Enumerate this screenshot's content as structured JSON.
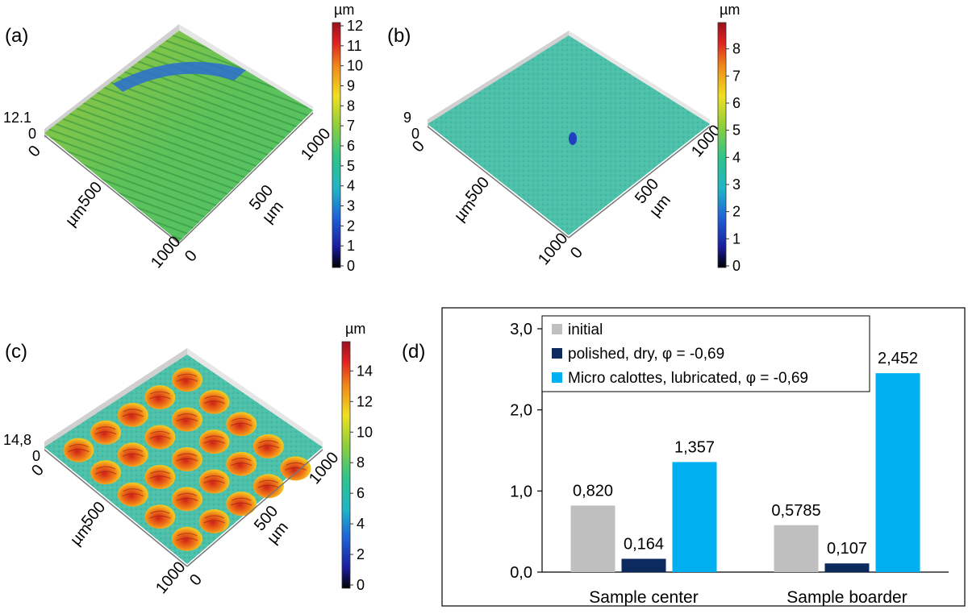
{
  "panels": {
    "a": {
      "label": "(a)",
      "zmax_label": "12.1",
      "unit": "µm",
      "colorbar_ticks": [
        "0",
        "1",
        "2",
        "3",
        "4",
        "5",
        "6",
        "7",
        "8",
        "9",
        "10",
        "11",
        "12"
      ],
      "axis_left_ticks": [
        "0",
        "500",
        "1000"
      ],
      "axis_right_ticks": [
        "0",
        "500",
        "1000"
      ],
      "axis_left_unit": "µm",
      "axis_right_unit": "µm",
      "z_zero": "0"
    },
    "b": {
      "label": "(b)",
      "zmax_label": "9",
      "unit": "µm",
      "colorbar_ticks": [
        "0",
        "1",
        "2",
        "3",
        "4",
        "5",
        "6",
        "7",
        "8"
      ],
      "axis_left_ticks": [
        "0",
        "500",
        "1000"
      ],
      "axis_right_ticks": [
        "0",
        "500",
        "1000"
      ],
      "axis_left_unit": "µm",
      "axis_right_unit": "µm",
      "z_zero": "0"
    },
    "c": {
      "label": "(c)",
      "zmax_label": "14,8",
      "unit": "µm",
      "colorbar_ticks": [
        "0",
        "2",
        "4",
        "6",
        "8",
        "10",
        "12",
        "14"
      ],
      "axis_left_ticks": [
        "0",
        "500",
        "1000"
      ],
      "axis_right_ticks": [
        "0",
        "500",
        "1000"
      ],
      "axis_left_unit": "µm",
      "axis_right_unit": "µm",
      "z_zero": "0"
    },
    "d": {
      "label": "(d)"
    }
  },
  "chart_data": {
    "type": "bar",
    "title": "",
    "xlabel": "",
    "ylabel": "",
    "ylim": [
      0,
      3
    ],
    "yticks": [
      "0,0",
      "1,0",
      "2,0",
      "3,0"
    ],
    "categories": [
      "Sample center",
      "Sample boarder"
    ],
    "legend_position": "top",
    "series": [
      {
        "name": "initial",
        "color": "#bfbfbf",
        "values": [
          0.82,
          0.5785
        ],
        "labels": [
          "0,820",
          "0,5785"
        ]
      },
      {
        "name": "polished, dry, φ = -0,69",
        "color": "#0d2a5e",
        "values": [
          0.164,
          0.107
        ],
        "labels": [
          "0,164",
          "0,107"
        ]
      },
      {
        "name": "Micro calottes, lubricated, φ = -0,69",
        "color": "#00b0f0",
        "values": [
          1.357,
          2.452
        ],
        "labels": [
          "1,357",
          "2,452"
        ]
      }
    ]
  }
}
